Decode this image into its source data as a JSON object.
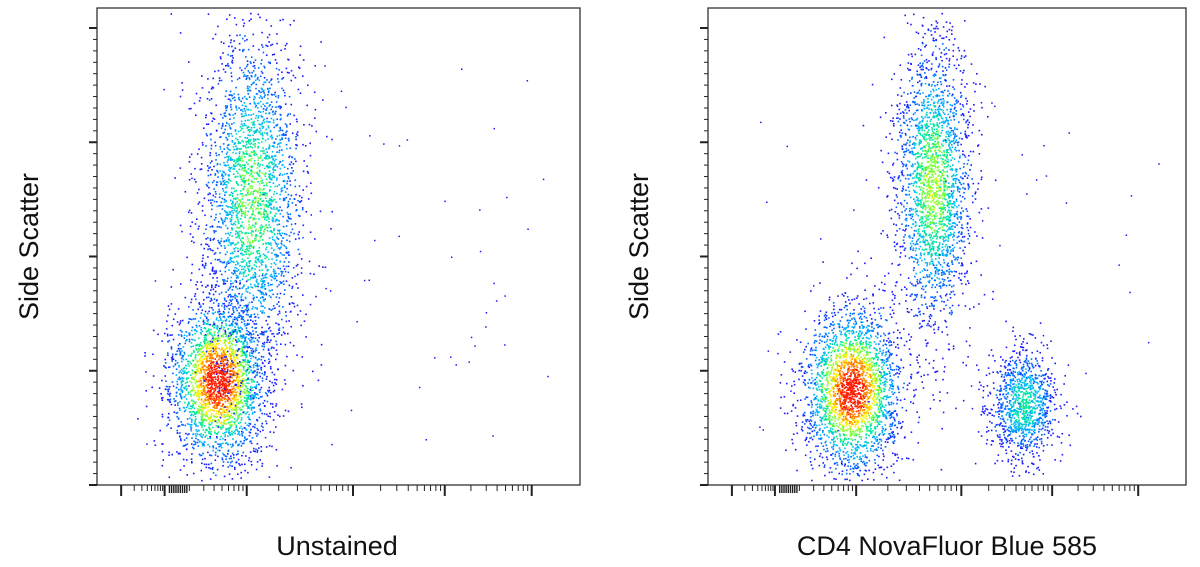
{
  "chart_data": [
    {
      "type": "scatter",
      "xlabel": "Unstained",
      "ylabel": "Side Scatter",
      "xlim": [
        0,
        1
      ],
      "ylim": [
        0,
        1
      ],
      "log_x": true,
      "density_colormap": [
        "#1a1aff",
        "#0066ff",
        "#00b3ff",
        "#00e6a0",
        "#7dff3c",
        "#ffee00",
        "#ff8800",
        "#ff1a00"
      ],
      "populations": [
        {
          "cx": 0.25,
          "cy": 0.22,
          "spread_x": 0.05,
          "spread_y": 0.085,
          "count": 2600,
          "peak": 1.0
        },
        {
          "cx": 0.32,
          "cy": 0.6,
          "spread_x": 0.052,
          "spread_y": 0.18,
          "count": 2600,
          "peak": 0.55
        }
      ]
    },
    {
      "type": "scatter",
      "xlabel": "CD4 NovaFluor Blue 585",
      "ylabel": "Side Scatter",
      "xlim": [
        0,
        1
      ],
      "ylim": [
        0,
        1
      ],
      "log_x": true,
      "density_colormap": [
        "#1a1aff",
        "#0066ff",
        "#00b3ff",
        "#00e6a0",
        "#7dff3c",
        "#ffee00",
        "#ff8800",
        "#ff1a00"
      ],
      "populations": [
        {
          "cx": 0.3,
          "cy": 0.2,
          "spread_x": 0.05,
          "spread_y": 0.085,
          "count": 2600,
          "peak": 1.0
        },
        {
          "cx": 0.47,
          "cy": 0.63,
          "spread_x": 0.04,
          "spread_y": 0.15,
          "count": 2300,
          "peak": 0.6
        },
        {
          "cx": 0.66,
          "cy": 0.17,
          "spread_x": 0.035,
          "spread_y": 0.06,
          "count": 1100,
          "peak": 0.45
        }
      ]
    }
  ]
}
